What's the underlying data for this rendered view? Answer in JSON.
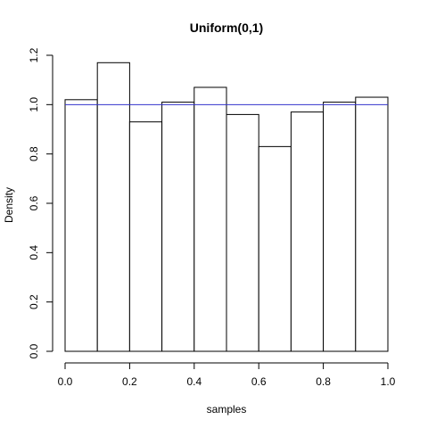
{
  "chart_data": {
    "type": "bar",
    "title": "Uniform(0,1)",
    "xlabel": "samples",
    "ylabel": "Density",
    "xlim": [
      0,
      1
    ],
    "ylim": [
      0,
      1.2
    ],
    "x_ticks": [
      "0.0",
      "0.2",
      "0.4",
      "0.6",
      "0.8",
      "1.0"
    ],
    "y_ticks": [
      "0.0",
      "0.2",
      "0.4",
      "0.6",
      "0.8",
      "1.0",
      "1.2"
    ],
    "bins": [
      {
        "start": 0.0,
        "end": 0.1,
        "density": 1.02
      },
      {
        "start": 0.1,
        "end": 0.2,
        "density": 1.17
      },
      {
        "start": 0.2,
        "end": 0.3,
        "density": 0.93
      },
      {
        "start": 0.3,
        "end": 0.4,
        "density": 1.01
      },
      {
        "start": 0.4,
        "end": 0.5,
        "density": 1.07
      },
      {
        "start": 0.5,
        "end": 0.6,
        "density": 0.96
      },
      {
        "start": 0.6,
        "end": 0.7,
        "density": 0.83
      },
      {
        "start": 0.7,
        "end": 0.8,
        "density": 0.97
      },
      {
        "start": 0.8,
        "end": 0.9,
        "density": 1.01
      },
      {
        "start": 0.9,
        "end": 1.0,
        "density": 1.03
      }
    ],
    "reference_line": {
      "density": 1.0,
      "color": "#3333cc"
    },
    "bar_fill": "#ffffff",
    "bar_stroke": "#000000"
  }
}
